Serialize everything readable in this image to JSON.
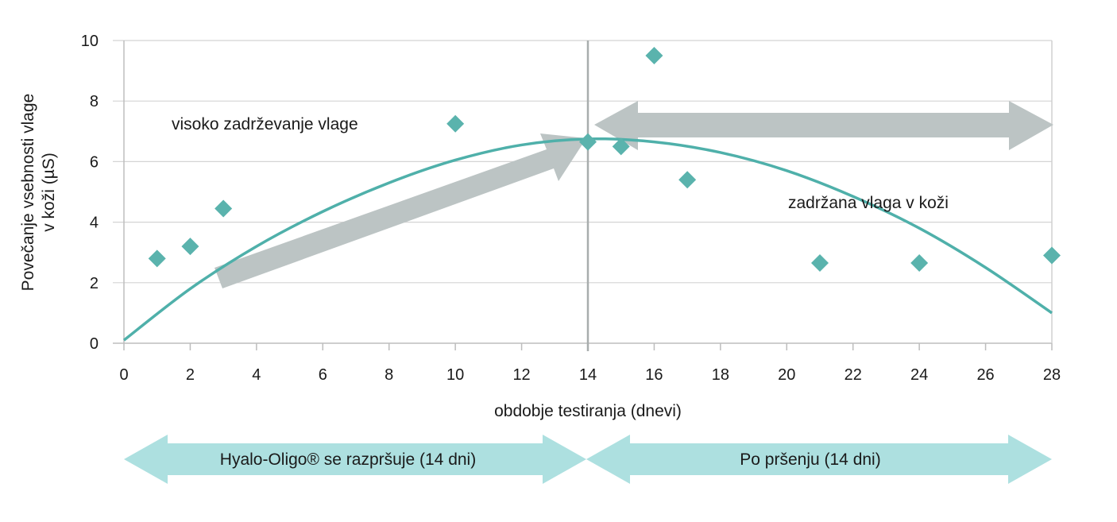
{
  "chart_data": {
    "type": "scatter",
    "xlabel": "obdobje testiranja (dnevi)",
    "ylabel_lines": [
      "Povečanje vsebnosti vlage",
      "v koži (µS)"
    ],
    "xlim": [
      0,
      28
    ],
    "ylim": [
      0,
      10
    ],
    "xticks": [
      0,
      2,
      4,
      6,
      8,
      10,
      12,
      14,
      16,
      18,
      20,
      22,
      24,
      26,
      28
    ],
    "yticks": [
      0,
      2,
      4,
      6,
      8,
      10
    ],
    "grid": "horizontal",
    "points": [
      {
        "x": 1,
        "y": 2.8
      },
      {
        "x": 2,
        "y": 3.2
      },
      {
        "x": 3,
        "y": 4.45
      },
      {
        "x": 10,
        "y": 7.25
      },
      {
        "x": 14,
        "y": 6.65
      },
      {
        "x": 15,
        "y": 6.5
      },
      {
        "x": 16,
        "y": 9.5
      },
      {
        "x": 17,
        "y": 5.4
      },
      {
        "x": 21,
        "y": 2.65
      },
      {
        "x": 24,
        "y": 2.65
      },
      {
        "x": 28,
        "y": 2.9
      }
    ],
    "trendline": [
      {
        "x": 0,
        "y": 0.1
      },
      {
        "x": 2,
        "y": 1.8
      },
      {
        "x": 4,
        "y": 3.2
      },
      {
        "x": 6,
        "y": 4.35
      },
      {
        "x": 8,
        "y": 5.3
      },
      {
        "x": 10,
        "y": 6.05
      },
      {
        "x": 12,
        "y": 6.55
      },
      {
        "x": 14,
        "y": 6.75
      },
      {
        "x": 16,
        "y": 6.65
      },
      {
        "x": 18,
        "y": 6.3
      },
      {
        "x": 20,
        "y": 5.7
      },
      {
        "x": 22,
        "y": 4.85
      },
      {
        "x": 24,
        "y": 3.8
      },
      {
        "x": 26,
        "y": 2.5
      },
      {
        "x": 28,
        "y": 1.0
      }
    ],
    "divider_x": 14,
    "annotations": {
      "left": "visoko zadrževanje vlage",
      "right": "zadržana vlaga v koži"
    },
    "phases": [
      {
        "label": "Hyalo-Oligo® se razpršuje (14 dni)",
        "from": 0,
        "to": 14
      },
      {
        "label": "Po pršenju (14 dni)",
        "from": 14,
        "to": 28
      }
    ],
    "colors": {
      "marker": "#5ab3ad",
      "line": "#4fb0aa",
      "arrow": "#bcc4c4",
      "phase": "#ade0e0",
      "grid": "#d4d4d4"
    }
  }
}
